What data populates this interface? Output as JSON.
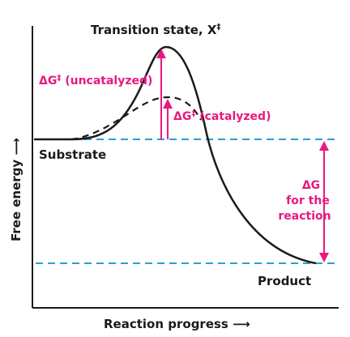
{
  "diagram": {
    "title_label": "Transition state, X",
    "title_superscript": "‡",
    "substrate_label": "Substrate",
    "product_label": "Product",
    "uncatalyzed_label": {
      "delta": "ΔG",
      "superscript": "‡",
      "text": " (uncatalyzed)"
    },
    "catalyzed_label": {
      "delta": "ΔG",
      "superscript": "‡",
      "text": " (catalyzed)"
    },
    "delta_g_label": {
      "line1": "ΔG",
      "line2": "for the",
      "line3": "reaction"
    },
    "x_axis_label": "Reaction progress ⟶",
    "y_axis_label": "Free energy ⟶",
    "colors": {
      "curve": "#1a1a1a",
      "accent": "#e8197f",
      "dashed_level": "#2a9fd0",
      "axis": "#1a1a1a"
    }
  }
}
